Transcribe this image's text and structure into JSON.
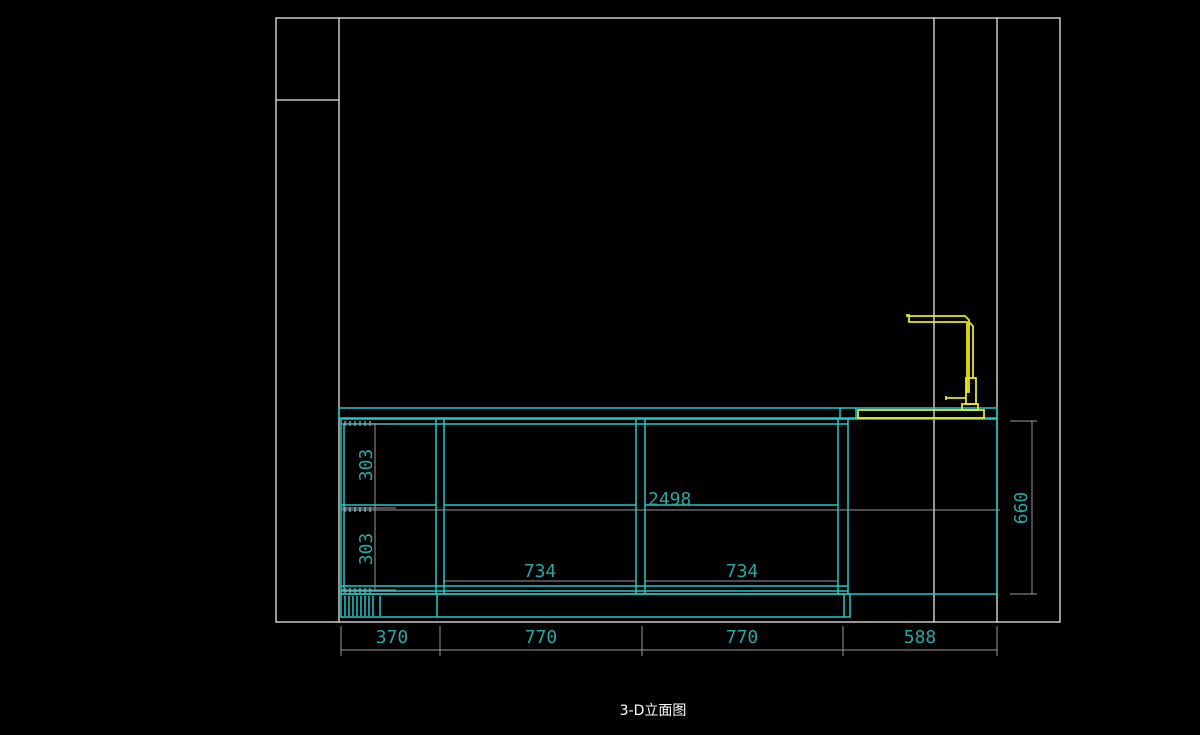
{
  "drawing": {
    "title": "3-D立面图",
    "colors": {
      "background": "#000000",
      "walls": "#e8e8e8",
      "cabinet": "#22c8c8",
      "faucet": "#e8e820",
      "dimension_text": "#2aa6a6",
      "dimension_lines": "#9a9a9a"
    },
    "dimensions": {
      "bottom": [
        "370",
        "770",
        "770",
        "588"
      ],
      "left_vertical": [
        "303",
        "303"
      ],
      "overall_width": "2498",
      "inner_widths": [
        "734",
        "734"
      ],
      "right_height": "660"
    }
  }
}
